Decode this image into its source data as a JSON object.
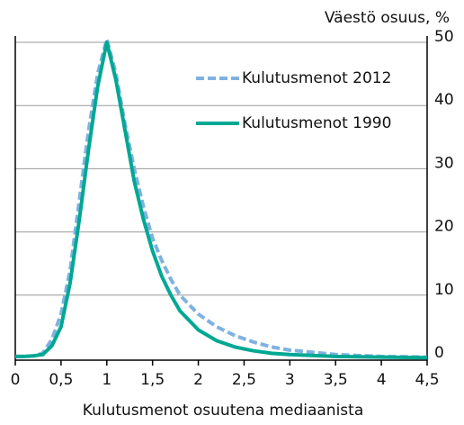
{
  "chart_data": {
    "type": "line",
    "title": "Väestö osuus, %",
    "x_label": "Kulutusmenot osuutena mediaanista",
    "x": [
      0,
      0.1,
      0.2,
      0.3,
      0.4,
      0.5,
      0.6,
      0.7,
      0.8,
      0.9,
      1.0,
      1.1,
      1.2,
      1.3,
      1.4,
      1.5,
      1.6,
      1.7,
      1.8,
      1.9,
      2.0,
      2.2,
      2.4,
      2.6,
      2.8,
      3.0,
      3.5,
      4.0,
      4.5
    ],
    "series": [
      {
        "name": "Kulutusmenot 2012",
        "color": "#7fb2e0",
        "dashed": true,
        "values": [
          0.3,
          0.3,
          0.4,
          0.8,
          3,
          7,
          14,
          25,
          36,
          45,
          50.5,
          45,
          37,
          30,
          24,
          19,
          15.5,
          12.5,
          10,
          8.5,
          7,
          5,
          3.6,
          2.6,
          1.8,
          1.3,
          0.6,
          0.3,
          0.2
        ]
      },
      {
        "name": "Kulutusmenot 1990",
        "color": "#00a893",
        "dashed": false,
        "values": [
          0.3,
          0.3,
          0.4,
          0.6,
          2,
          5,
          12,
          22,
          33,
          43,
          50,
          44,
          36,
          28,
          22,
          17,
          13,
          10,
          7.5,
          6,
          4.5,
          2.8,
          1.8,
          1.2,
          0.8,
          0.6,
          0.3,
          0.2,
          0.1
        ]
      }
    ],
    "xlim": [
      0,
      4.5
    ],
    "xticks": [
      0,
      {
        "value": 0.5,
        "label": "0,5"
      },
      1,
      {
        "value": 1.5,
        "label": "1,5"
      },
      2,
      {
        "value": 2.5,
        "label": "2,5"
      },
      3,
      {
        "value": 3.5,
        "label": "3,5"
      },
      4,
      {
        "value": 4.5,
        "label": "4,5"
      }
    ],
    "ylim": [
      0,
      51
    ],
    "yticks": [
      0,
      10,
      20,
      30,
      40,
      50
    ],
    "grid": true
  }
}
